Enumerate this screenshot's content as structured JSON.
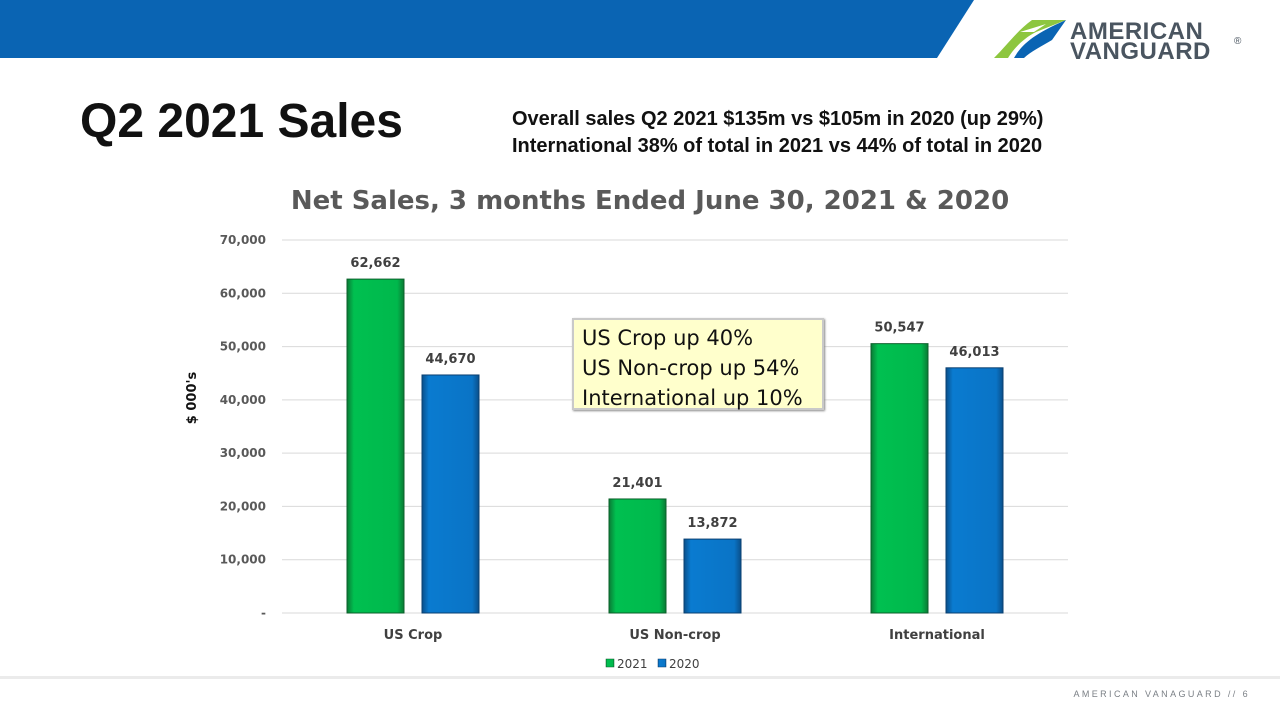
{
  "header": {
    "bar_color": "#0a64b3",
    "logo": {
      "line1": "AMERICAN",
      "line2": "VANGUARD",
      "reg": "®",
      "icon": "av-swoosh-logo-icon"
    }
  },
  "slide": {
    "title": "Q2 2021 Sales",
    "summary_line1": "Overall sales Q2 2021 $135m vs $105m in 2020 (up 29%)",
    "summary_line2": "International 38% of total in 2021 vs 44% of total in 2020"
  },
  "chart_data": {
    "type": "bar",
    "title": "Net Sales, 3 months Ended June 30, 2021 & 2020",
    "xlabel": "",
    "ylabel": "$ 000's",
    "categories": [
      "US Crop",
      "US Non-crop",
      "International"
    ],
    "series": [
      {
        "name": "2021",
        "values": [
          62662,
          21401,
          50547
        ],
        "labels": [
          "62,662",
          "21,401",
          "50,547"
        ],
        "color": "#00b050"
      },
      {
        "name": "2020",
        "values": [
          44670,
          13872,
          46013
        ],
        "labels": [
          "44,670",
          "13,872",
          "46,013"
        ],
        "color": "#0070c0"
      }
    ],
    "ylim": [
      0,
      70000
    ],
    "yticks": [
      0,
      10000,
      20000,
      30000,
      40000,
      50000,
      60000,
      70000
    ],
    "ytick_labels": [
      "-",
      "10,000",
      "20,000",
      "30,000",
      "40,000",
      "50,000",
      "60,000",
      "70,000"
    ],
    "grid": true,
    "legend_position": "bottom"
  },
  "callout": {
    "line1": "US Crop up 40%",
    "line2": "US Non-crop up 54%",
    "line3": "International up 10%"
  },
  "footer": {
    "text": "AMERICAN VANAGUARD   // 6"
  }
}
